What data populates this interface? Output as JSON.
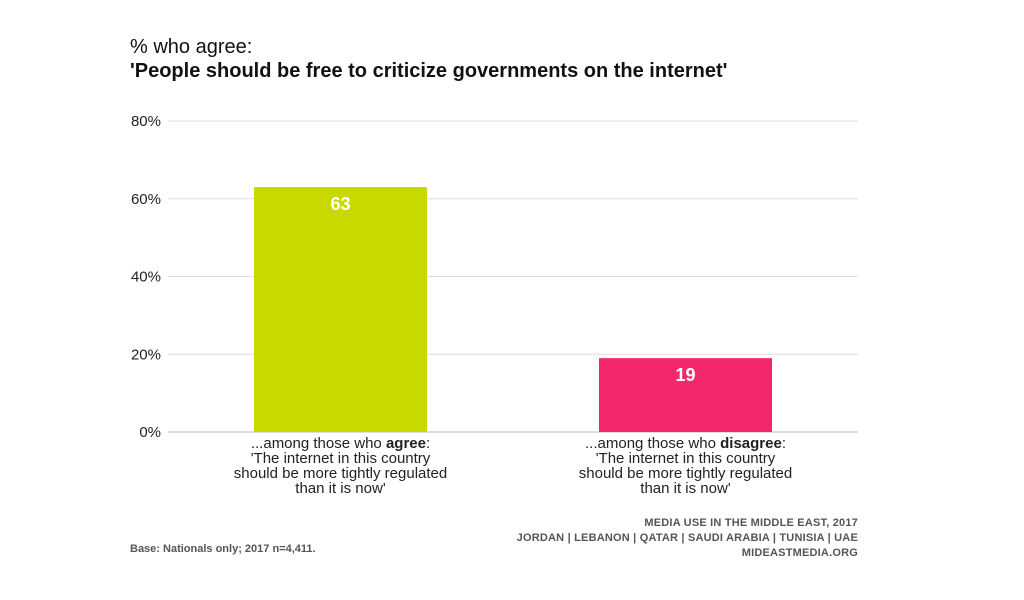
{
  "header": {
    "subtitle": "% who agree:",
    "title": "'People should be free to criticize governments on the internet'"
  },
  "chart_data": {
    "type": "bar",
    "categories": [
      {
        "prefix": "...among those who ",
        "emphasis": "agree",
        "suffix": ":",
        "lines": [
          "'The internet in this country",
          "should be more tightly regulated",
          "than it is now'"
        ]
      },
      {
        "prefix": "...among those who ",
        "emphasis": "disagree",
        "suffix": ":",
        "lines": [
          "'The internet in this country",
          "should be more tightly regulated",
          "than it is now'"
        ]
      }
    ],
    "values": [
      63,
      19
    ],
    "colors": [
      "#c8d900",
      "#f2286b"
    ],
    "ylim": [
      0,
      80
    ],
    "yticks": [
      0,
      20,
      40,
      60,
      80
    ],
    "ytick_labels": [
      "0%",
      "20%",
      "40%",
      "60%",
      "80%"
    ],
    "grid": true
  },
  "footer": {
    "base_note": "Base: Nationals only; 2017 n=4,411.",
    "source_lines": [
      "MEDIA USE IN THE MIDDLE EAST, 2017",
      "JORDAN | LEBANON | QATAR | SAUDI ARABIA | TUNISIA | UAE",
      "MIDEASTMEDIA.ORG"
    ]
  }
}
